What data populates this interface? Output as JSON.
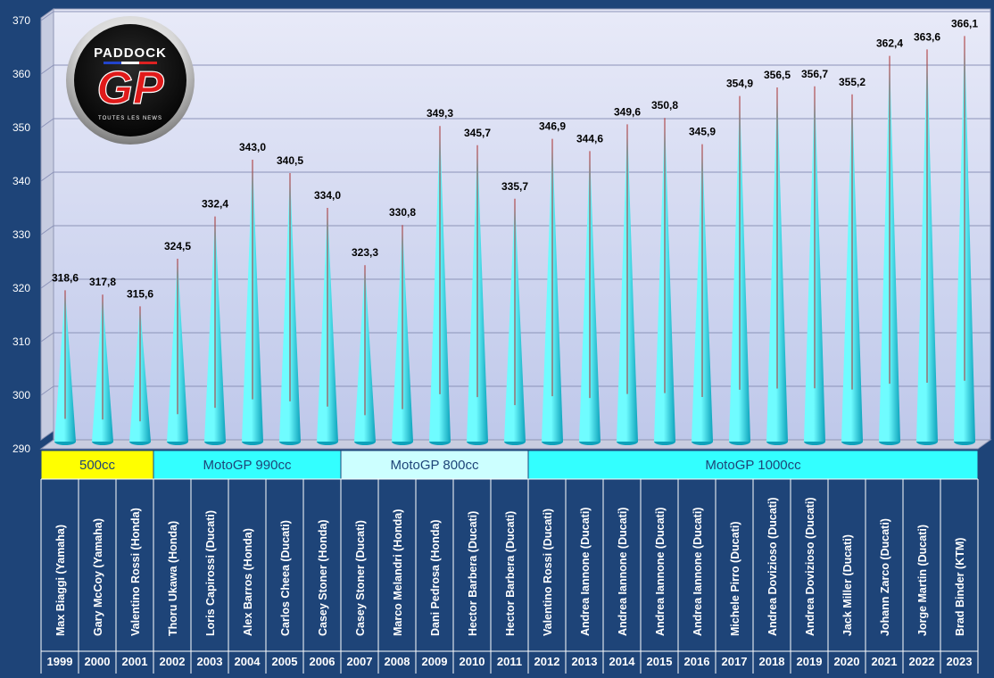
{
  "logo": {
    "brand": "PADDOCK",
    "mark": "GP",
    "tagline": "TOUTES LES NEWS"
  },
  "chart_data": {
    "type": "bar",
    "ylim": [
      290,
      370
    ],
    "yticks": [
      290,
      300,
      310,
      320,
      330,
      340,
      350,
      360,
      370
    ],
    "grid": true,
    "categories": [
      "1999",
      "2000",
      "2001",
      "2002",
      "2003",
      "2004",
      "2005",
      "2006",
      "2007",
      "2008",
      "2009",
      "2010",
      "2011",
      "2012",
      "2013",
      "2014",
      "2015",
      "2016",
      "2017",
      "2018",
      "2019",
      "2020",
      "2021",
      "2022",
      "2023"
    ],
    "riders": [
      "Max Biaggi (Yamaha)",
      "Gary McCoy (Yamaha)",
      "Valentino Rossi (Honda)",
      "Thoru Ukawa (Honda)",
      "Loris Capirossi (Ducati)",
      "Alex Barros (Honda)",
      "Carlos Cheea (Ducati)",
      "Casey Stoner (Honda)",
      "Casey Stoner (Ducati)",
      "Marco Melandri (Honda)",
      "Dani Pedrosa (Honda)",
      "Hector Barbera (Ducati)",
      "Hector Barbera (Ducati)",
      "Valentino Rossi (Ducati)",
      "Andrea Iannone (Ducati)",
      "Andrea Iannone (Ducati)",
      "Andrea Iannone (Ducati)",
      "Andrea Iannone (Ducati)",
      "Michele Pirro (Ducati)",
      "Andrea Dovizioso (Ducati)",
      "Andrea Dovizioso (Ducati)",
      "Jack Miller (Ducati)",
      "Johann Zarco (Ducati)",
      "Jorge Martin (Ducati)",
      "Brad Binder (KTM)"
    ],
    "values": [
      318.6,
      317.8,
      315.6,
      324.5,
      332.4,
      343.0,
      340.5,
      334.0,
      323.3,
      330.8,
      349.3,
      345.7,
      335.7,
      346.9,
      344.6,
      349.6,
      350.8,
      345.9,
      354.9,
      356.5,
      356.7,
      355.2,
      362.4,
      363.6,
      366.1
    ],
    "value_labels": [
      "318,6",
      "317,8",
      "315,6",
      "324,5",
      "332,4",
      "343,0",
      "340,5",
      "334,0",
      "323,3",
      "330,8",
      "349,3",
      "345,7",
      "335,7",
      "346,9",
      "344,6",
      "349,6",
      "350,8",
      "345,9",
      "354,9",
      "356,5",
      "356,7",
      "355,2",
      "362,4",
      "363,6",
      "366,1"
    ],
    "groups": [
      {
        "label": "500cc",
        "start": 0,
        "end": 2,
        "color": "#ffff00"
      },
      {
        "label": "MotoGP 990cc",
        "start": 3,
        "end": 7,
        "color": "#33ffff"
      },
      {
        "label": "MotoGP 800cc",
        "start": 8,
        "end": 12,
        "color": "#ccffff"
      },
      {
        "label": "MotoGP 1000cc",
        "start": 13,
        "end": 24,
        "color": "#33ffff"
      }
    ],
    "colors": {
      "spike_light": "#6ffcff",
      "spike_dark": "#0ea2bb",
      "spike_tip": "#b22a2a",
      "plot_top": "#e8eaf8",
      "plot_bottom": "#bfc8ea",
      "background": "#1e4478"
    }
  }
}
